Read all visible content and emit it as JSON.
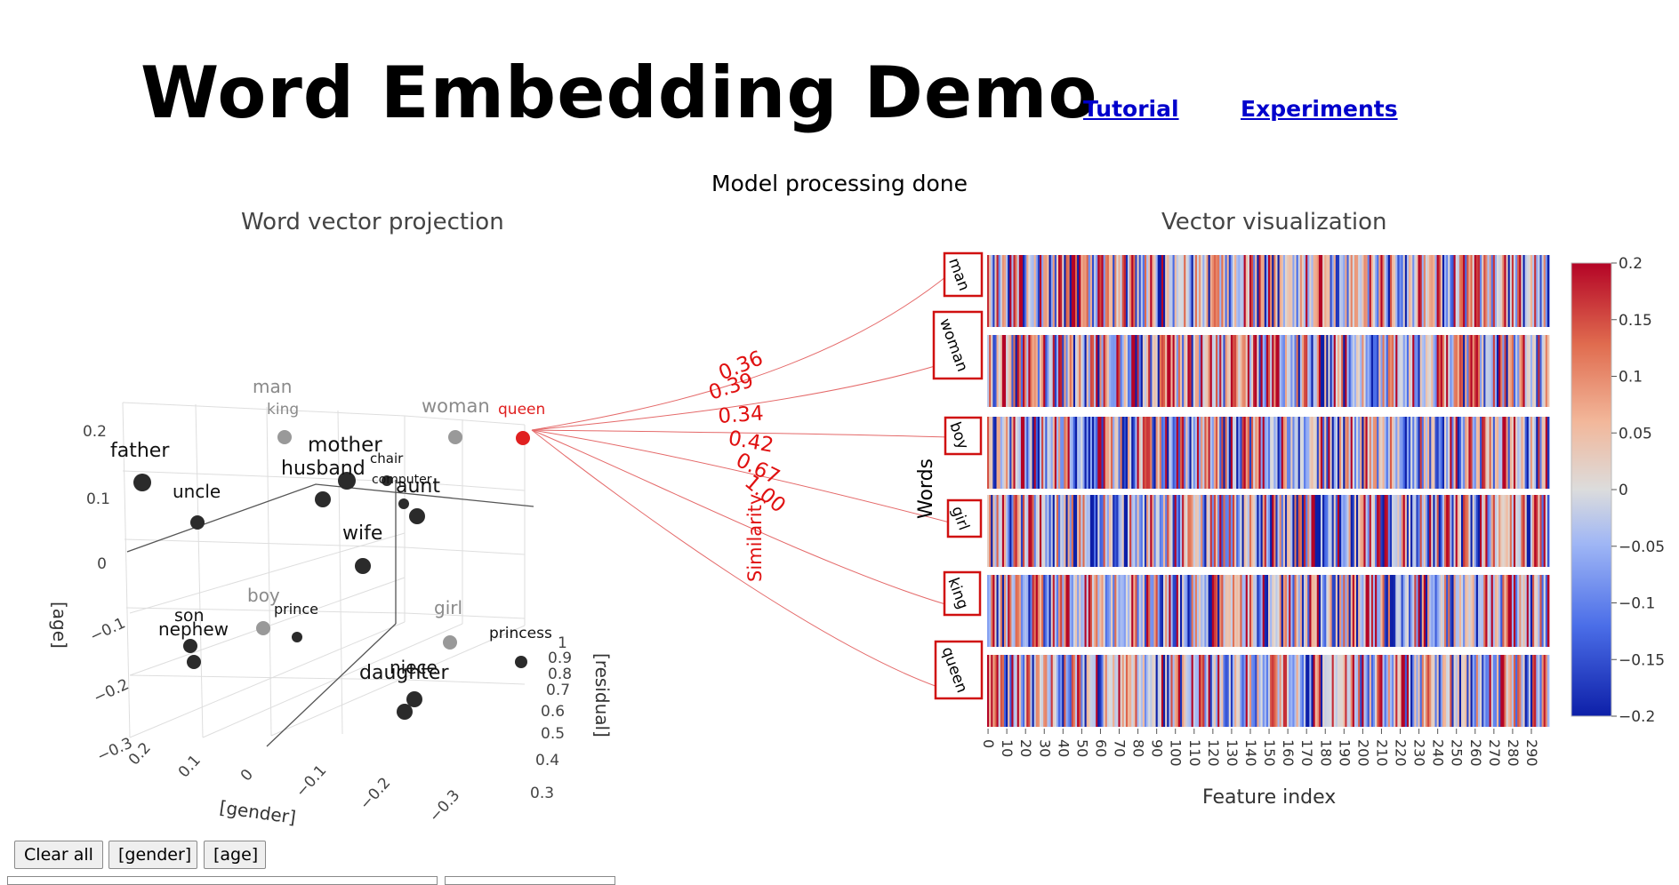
{
  "header": {
    "title": "Word Embedding Demo",
    "links": [
      {
        "label": "Tutorial"
      },
      {
        "label": "Experiments"
      }
    ]
  },
  "status": "Model processing done",
  "projection": {
    "title": "Word vector projection",
    "axes": {
      "x_label": "[gender]",
      "y_label": "[age]",
      "z_label": "[residual]"
    },
    "y_ticks": [
      "0.2",
      "0.1",
      "0",
      "−0.1",
      "−0.2",
      "−0.3"
    ],
    "x_ticks": [
      "0.2",
      "0.1",
      "0",
      "−0.1",
      "−0.2",
      "−0.3"
    ],
    "z_ticks": [
      "1",
      "0.9",
      "0.8",
      "0.7",
      "0.6",
      "0.5",
      "0.4",
      "0.3"
    ],
    "word_points": [
      {
        "label": "man",
        "kind": "gray"
      },
      {
        "label": "king",
        "kind": "gray"
      },
      {
        "label": "woman",
        "kind": "gray"
      },
      {
        "label": "queen",
        "kind": "red"
      },
      {
        "label": "father",
        "kind": "black"
      },
      {
        "label": "uncle",
        "kind": "black"
      },
      {
        "label": "mother",
        "kind": "black"
      },
      {
        "label": "husband",
        "kind": "black"
      },
      {
        "label": "chair",
        "kind": "black"
      },
      {
        "label": "computer",
        "kind": "black"
      },
      {
        "label": "aunt",
        "kind": "black"
      },
      {
        "label": "wife",
        "kind": "black"
      },
      {
        "label": "boy",
        "kind": "gray"
      },
      {
        "label": "prince",
        "kind": "black"
      },
      {
        "label": "girl",
        "kind": "gray"
      },
      {
        "label": "princess",
        "kind": "black"
      },
      {
        "label": "son",
        "kind": "black"
      },
      {
        "label": "nephew",
        "kind": "black"
      },
      {
        "label": "niece",
        "kind": "black"
      },
      {
        "label": "daughter",
        "kind": "black"
      }
    ]
  },
  "similarity": {
    "label": "Similarity",
    "values": [
      "0.36",
      "0.39",
      "0.34",
      "0.42",
      "0.67",
      "1.00"
    ]
  },
  "vector_viz": {
    "title": "Vector visualization",
    "y_label": "Words",
    "x_label": "Feature index",
    "words": [
      "man",
      "woman",
      "boy",
      "girl",
      "king",
      "queen"
    ],
    "x_ticks": [
      "0",
      "10",
      "20",
      "30",
      "40",
      "50",
      "60",
      "70",
      "80",
      "90",
      "100",
      "110",
      "120",
      "130",
      "140",
      "150",
      "160",
      "170",
      "180",
      "190",
      "200",
      "210",
      "220",
      "230",
      "240",
      "250",
      "260",
      "270",
      "280",
      "290"
    ],
    "colorbar_ticks": [
      "0.2",
      "0.15",
      "0.1",
      "0.05",
      "0",
      "−0.05",
      "−0.1",
      "−0.15",
      "−0.2"
    ],
    "colorscale": [
      "#0d1fa8",
      "#4b6ee8",
      "#9fb6f5",
      "#dcdcdc",
      "#f2b79a",
      "#e06c4f",
      "#b40426"
    ]
  },
  "controls": {
    "clear_label": "Clear all",
    "gender_label": "[gender]",
    "age_label": "[age]"
  }
}
